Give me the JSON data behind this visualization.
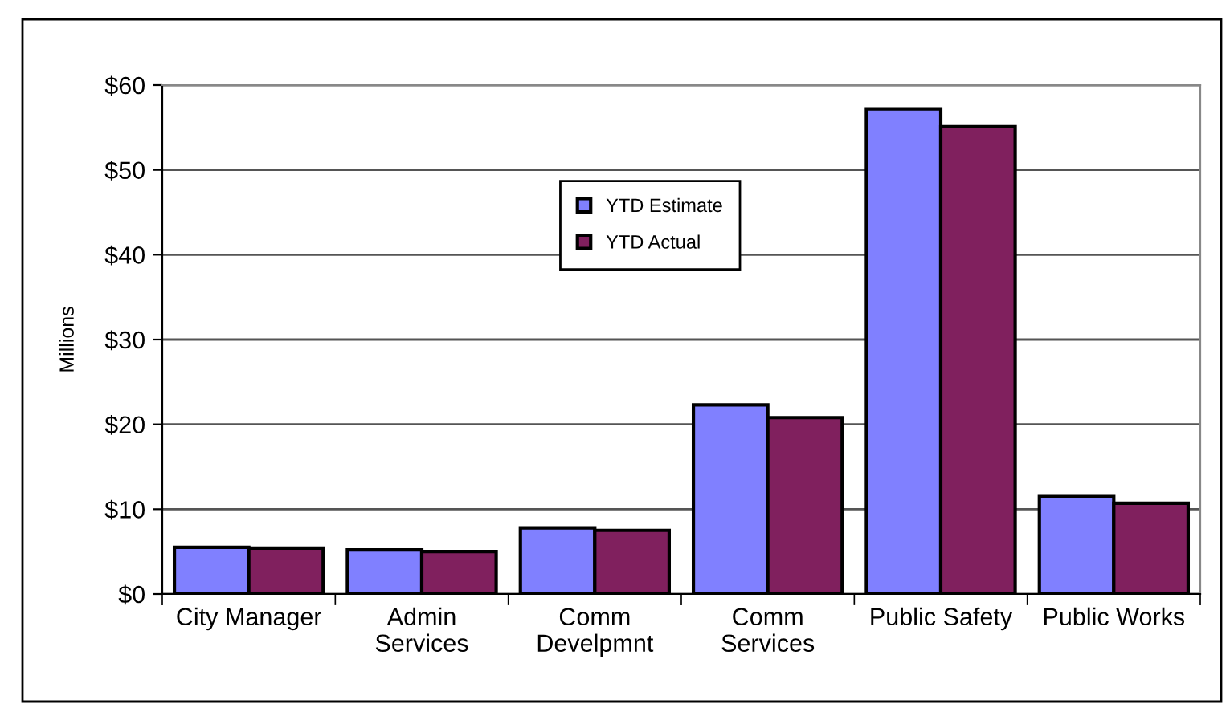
{
  "chart_data": {
    "type": "bar",
    "ylabel": "Millions",
    "categories": [
      "City Manager",
      "Admin\nServices",
      "Comm\nDevelpmnt",
      "Comm\nServices",
      "Public Safety",
      "Public Works"
    ],
    "series": [
      {
        "name": "YTD Estimate",
        "color": "#8080ff",
        "values": [
          5.5,
          5.2,
          7.8,
          22.3,
          57.2,
          11.5
        ]
      },
      {
        "name": "YTD Actual",
        "color": "#80205e",
        "values": [
          5.4,
          5.0,
          7.5,
          20.8,
          55.1,
          10.7
        ]
      }
    ],
    "ylim": [
      0,
      60
    ],
    "yticks": [
      {
        "value": 0,
        "label": "$0"
      },
      {
        "value": 10,
        "label": "$10"
      },
      {
        "value": 20,
        "label": "$20"
      },
      {
        "value": 30,
        "label": "$30"
      },
      {
        "value": 40,
        "label": "$40"
      },
      {
        "value": 50,
        "label": "$50"
      },
      {
        "value": 60,
        "label": "$60"
      }
    ],
    "grid": "y",
    "legend": "top center"
  }
}
